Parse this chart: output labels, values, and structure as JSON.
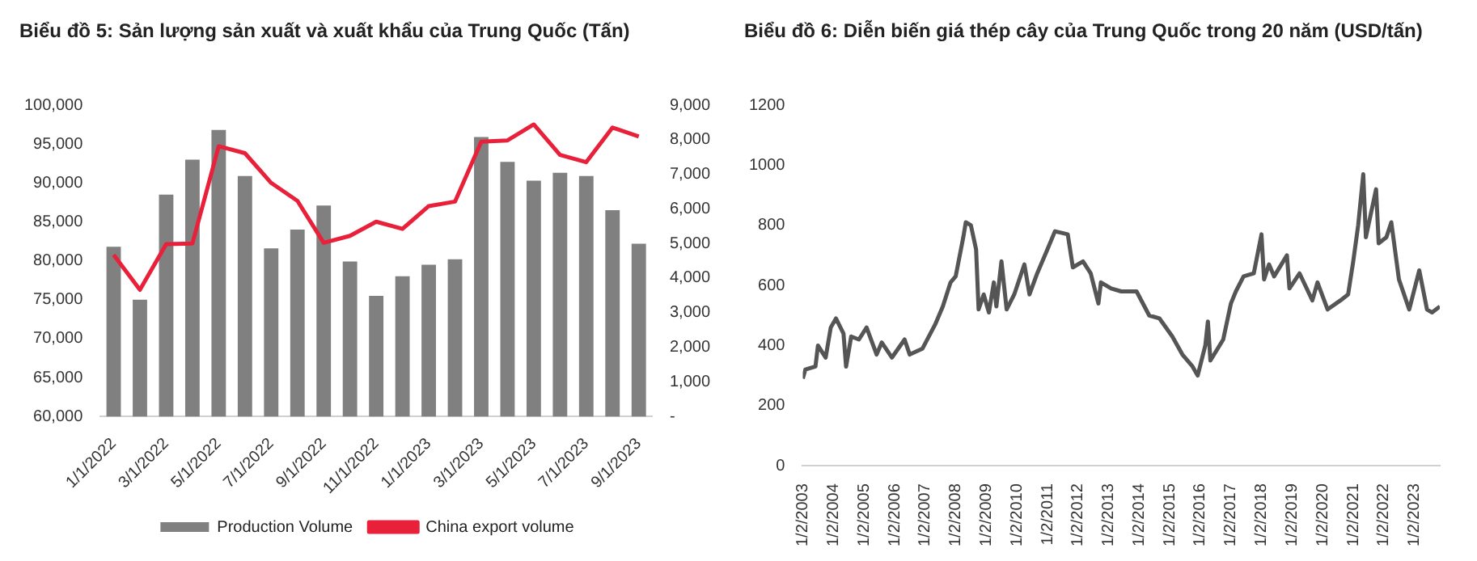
{
  "chart_data": [
    {
      "type": "bar",
      "title": "Biểu đồ 5: Sản lượng sản xuất và xuất khẩu của Trung Quốc (Tấn)",
      "categories": [
        "1/1/2022",
        null,
        "3/1/2022",
        null,
        "5/1/2022",
        null,
        "7/1/2022",
        null,
        "9/1/2022",
        null,
        "11/1/2022",
        null,
        "1/1/2023",
        null,
        "3/1/2023",
        null,
        "5/1/2023",
        null,
        "7/1/2023",
        null,
        "9/1/2023"
      ],
      "series": [
        {
          "name": "Production Volume",
          "color": "#808080",
          "values": [
            81800,
            75000,
            88500,
            93000,
            96800,
            90900,
            81600,
            84000,
            87100,
            79900,
            75500,
            78000,
            79500,
            80200,
            95900,
            92700,
            90300,
            91300,
            90900,
            86500,
            82200
          ]
        },
        {
          "name": "China export volume",
          "type": "line",
          "axis": "y2",
          "color": "#e8203a",
          "values": [
            4670,
            3660,
            4980,
            5000,
            7810,
            7610,
            6750,
            6230,
            5020,
            5220,
            5630,
            5420,
            6080,
            6210,
            7940,
            7980,
            8440,
            7560,
            7350,
            8350,
            8090
          ]
        }
      ],
      "ylim": [
        60000,
        100000
      ],
      "yticks": [
        {
          "value": 60000,
          "label": "60,000"
        },
        {
          "value": 65000,
          "label": "65,000"
        },
        {
          "value": 70000,
          "label": "70,000"
        },
        {
          "value": 75000,
          "label": "75,000"
        },
        {
          "value": 80000,
          "label": "80,000"
        },
        {
          "value": 85000,
          "label": "85,000"
        },
        {
          "value": 90000,
          "label": "90,000"
        },
        {
          "value": 95000,
          "label": "95,000"
        },
        {
          "value": 100000,
          "label": "100,000"
        }
      ],
      "y2lim": [
        0,
        9000
      ],
      "y2ticks": [
        {
          "value": 0,
          "label": "-"
        },
        {
          "value": 1000,
          "label": "1,000"
        },
        {
          "value": 2000,
          "label": "2,000"
        },
        {
          "value": 3000,
          "label": "3,000"
        },
        {
          "value": 4000,
          "label": "4,000"
        },
        {
          "value": 5000,
          "label": "5,000"
        },
        {
          "value": 6000,
          "label": "6,000"
        },
        {
          "value": 7000,
          "label": "7,000"
        },
        {
          "value": 8000,
          "label": "8,000"
        },
        {
          "value": 9000,
          "label": "9,000"
        }
      ],
      "legend": "bottom"
    },
    {
      "type": "line",
      "title": "Biểu đồ 6: Diễn biến giá thép cây của Trung Quốc trong 20 năm (USD/tấn)",
      "x": [
        "2003-01",
        "2003-02",
        "2003-06",
        "2003-07",
        "2003-10",
        "2003-12",
        "2004-02",
        "2004-05",
        "2004-06",
        "2004-08",
        "2004-11",
        "2005-02",
        "2005-06",
        "2005-08",
        "2005-12",
        "2006-05",
        "2006-07",
        "2006-12",
        "2007-05",
        "2007-08",
        "2007-11",
        "2008-01",
        "2008-04",
        "2008-05",
        "2008-07",
        "2008-09",
        "2008-10",
        "2008-12",
        "2009-02",
        "2009-04",
        "2009-05",
        "2009-07",
        "2009-09",
        "2009-12",
        "2010-04",
        "2010-06",
        "2010-09",
        "2011-01",
        "2011-04",
        "2011-09",
        "2011-11",
        "2012-03",
        "2012-06",
        "2012-09",
        "2012-10",
        "2013-02",
        "2013-06",
        "2013-12",
        "2014-05",
        "2014-09",
        "2015-02",
        "2015-06",
        "2015-10",
        "2015-12",
        "2016-03",
        "2016-04",
        "2016-05",
        "2016-10",
        "2017-01",
        "2017-03",
        "2017-06",
        "2017-10",
        "2018-01",
        "2018-02",
        "2018-04",
        "2018-06",
        "2018-11",
        "2018-12",
        "2019-04",
        "2019-09",
        "2019-11",
        "2020-03",
        "2020-08",
        "2020-11",
        "2021-01",
        "2021-03",
        "2021-05",
        "2021-06",
        "2021-08",
        "2021-10",
        "2021-11",
        "2022-02",
        "2022-04",
        "2022-07",
        "2022-11",
        "2023-03",
        "2023-06",
        "2023-08",
        "2023-11"
      ],
      "series": [
        {
          "color": "#555555",
          "values": [
            290,
            320,
            330,
            400,
            360,
            460,
            490,
            440,
            330,
            430,
            420,
            460,
            370,
            410,
            360,
            420,
            370,
            390,
            470,
            530,
            610,
            630,
            760,
            810,
            800,
            720,
            520,
            570,
            510,
            610,
            530,
            680,
            520,
            570,
            670,
            570,
            640,
            720,
            780,
            770,
            660,
            680,
            640,
            540,
            610,
            590,
            580,
            580,
            500,
            490,
            430,
            370,
            330,
            300,
            400,
            480,
            350,
            420,
            540,
            580,
            630,
            640,
            770,
            620,
            670,
            630,
            700,
            590,
            640,
            550,
            610,
            520,
            550,
            570,
            680,
            800,
            970,
            760,
            840,
            920,
            740,
            760,
            810,
            620,
            520,
            650,
            520,
            510,
            530
          ]
        }
      ],
      "xlim": [
        "2003-01-01",
        "2023-11-01"
      ],
      "xticks": [
        {
          "value": "2003-01-02",
          "label": "1/2/2003"
        },
        {
          "value": "2004-01-02",
          "label": "1/2/2004"
        },
        {
          "value": "2005-01-02",
          "label": "1/2/2005"
        },
        {
          "value": "2006-01-02",
          "label": "1/2/2006"
        },
        {
          "value": "2007-01-02",
          "label": "1/2/2007"
        },
        {
          "value": "2008-01-02",
          "label": "1/2/2008"
        },
        {
          "value": "2009-01-02",
          "label": "1/2/2009"
        },
        {
          "value": "2010-01-02",
          "label": "1/2/2010"
        },
        {
          "value": "2011-01-02",
          "label": "1/2/2011"
        },
        {
          "value": "2012-01-02",
          "label": "1/2/2012"
        },
        {
          "value": "2013-01-02",
          "label": "1/2/2013"
        },
        {
          "value": "2014-01-02",
          "label": "1/2/2014"
        },
        {
          "value": "2015-01-02",
          "label": "1/2/2015"
        },
        {
          "value": "2016-01-02",
          "label": "1/2/2016"
        },
        {
          "value": "2017-01-02",
          "label": "1/2/2017"
        },
        {
          "value": "2018-01-02",
          "label": "1/2/2018"
        },
        {
          "value": "2019-01-02",
          "label": "1/2/2019"
        },
        {
          "value": "2020-01-02",
          "label": "1/2/2020"
        },
        {
          "value": "2021-01-02",
          "label": "1/2/2021"
        },
        {
          "value": "2022-01-02",
          "label": "1/2/2022"
        },
        {
          "value": "2023-01-02",
          "label": "1/2/2023"
        }
      ],
      "ylim": [
        0,
        1200
      ],
      "yticks": [
        0,
        200,
        400,
        600,
        800,
        1000,
        1200
      ]
    }
  ]
}
